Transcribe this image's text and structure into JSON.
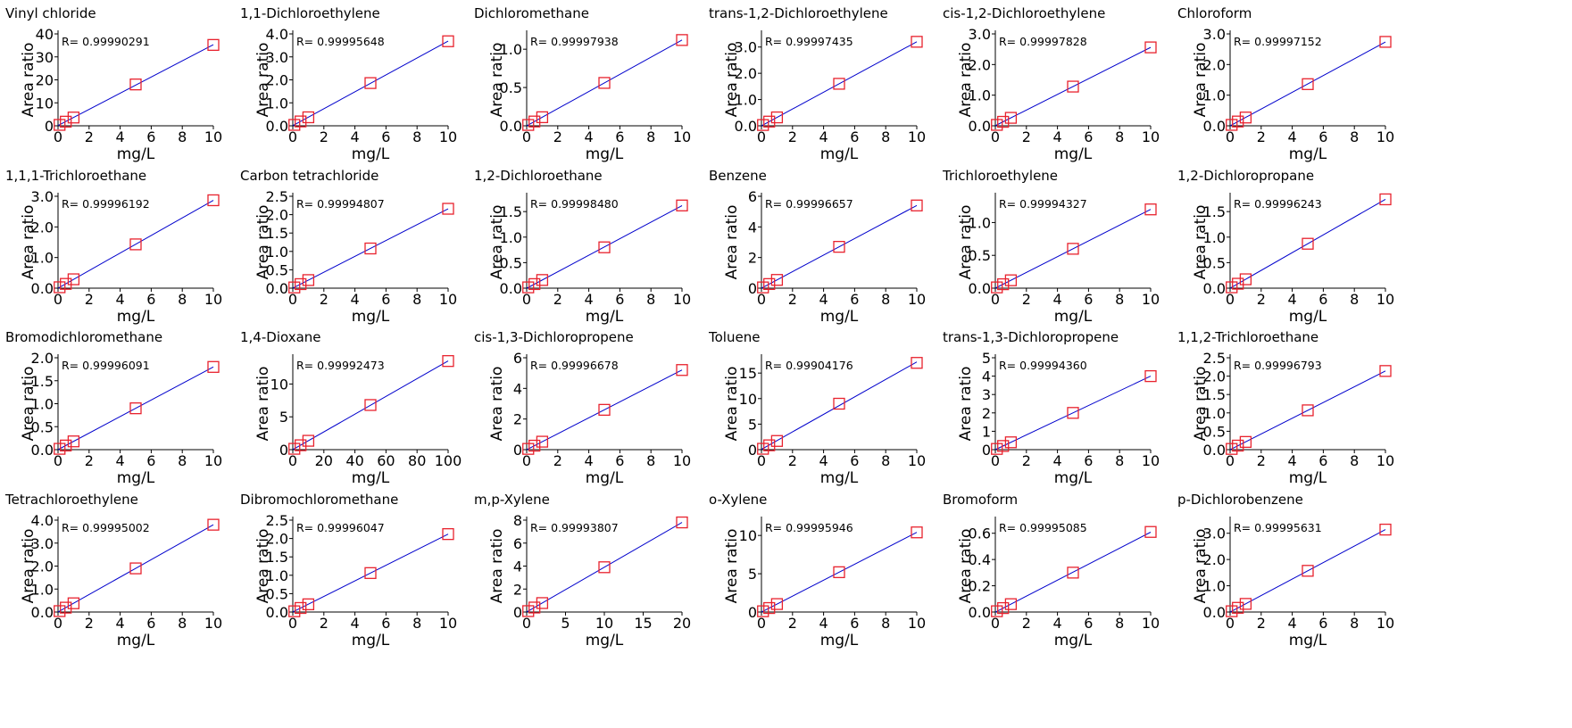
{
  "style": {
    "line_color": "#0000cc",
    "marker_color": "#e8222e",
    "axis_color": "#000000"
  },
  "chart_data": [
    {
      "type": "scatter",
      "title": "Vinyl chloride",
      "r_label": "R= 0.99990291",
      "xlabel": "mg/L",
      "ylabel": "Area ratio",
      "xlim": [
        0,
        10
      ],
      "ylim": [
        0,
        40
      ],
      "xticks": [
        "0",
        "2",
        "4",
        "6",
        "8",
        "10"
      ],
      "xtick_values": [
        0,
        2,
        4,
        6,
        8,
        10
      ],
      "yticks": [
        "0",
        "10",
        "20",
        "30",
        "40"
      ],
      "ytick_values": [
        0,
        10,
        20,
        30,
        40
      ],
      "x": [
        0.1,
        0.5,
        1,
        5,
        10
      ],
      "y": [
        0.4,
        1.8,
        3.6,
        18.0,
        35.2
      ]
    },
    {
      "type": "scatter",
      "title": "1,1-Dichloroethylene",
      "r_label": "R= 0.99995648",
      "xlabel": "mg/L",
      "ylabel": "Area ratio",
      "xlim": [
        0,
        10
      ],
      "ylim": [
        0,
        4
      ],
      "xticks": [
        "0",
        "2",
        "4",
        "6",
        "8",
        "10"
      ],
      "xtick_values": [
        0,
        2,
        4,
        6,
        8,
        10
      ],
      "yticks": [
        "0.0",
        "1.0",
        "2.0",
        "3.0",
        "4.0"
      ],
      "ytick_values": [
        0,
        1,
        2,
        3,
        4
      ],
      "x": [
        0.1,
        0.5,
        1,
        5,
        10
      ],
      "y": [
        0.04,
        0.19,
        0.37,
        1.86,
        3.68
      ]
    },
    {
      "type": "scatter",
      "title": "Dichloromethane",
      "r_label": "R= 0.99997938",
      "xlabel": "mg/L",
      "ylabel": "Area ratio",
      "xlim": [
        0,
        10
      ],
      "ylim": [
        0,
        1.2
      ],
      "xticks": [
        "0",
        "2",
        "4",
        "6",
        "8",
        "10"
      ],
      "xtick_values": [
        0,
        2,
        4,
        6,
        8,
        10
      ],
      "yticks": [
        "0.0",
        "0.5",
        "1.0"
      ],
      "ytick_values": [
        0,
        0.5,
        1.0
      ],
      "x": [
        0.1,
        0.5,
        1,
        5,
        10
      ],
      "y": [
        0.011,
        0.056,
        0.112,
        0.56,
        1.12
      ]
    },
    {
      "type": "scatter",
      "title": "trans-1,2-Dichloroethylene",
      "r_label": "R= 0.99997435",
      "xlabel": "mg/L",
      "ylabel": "Area ratio",
      "xlim": [
        0,
        10
      ],
      "ylim": [
        0,
        3.5
      ],
      "xticks": [
        "0",
        "2",
        "4",
        "6",
        "8",
        "10"
      ],
      "xtick_values": [
        0,
        2,
        4,
        6,
        8,
        10
      ],
      "yticks": [
        "0.0",
        "1.0",
        "2.0",
        "3.0"
      ],
      "ytick_values": [
        0,
        1,
        2,
        3
      ],
      "x": [
        0.1,
        0.5,
        1,
        5,
        10
      ],
      "y": [
        0.03,
        0.16,
        0.32,
        1.6,
        3.2
      ]
    },
    {
      "type": "scatter",
      "title": "cis-1,2-Dichloroethylene",
      "r_label": "R= 0.99997828",
      "xlabel": "mg/L",
      "ylabel": "Area ratio",
      "xlim": [
        0,
        10
      ],
      "ylim": [
        0,
        3
      ],
      "xticks": [
        "0",
        "2",
        "4",
        "6",
        "8",
        "10"
      ],
      "xtick_values": [
        0,
        2,
        4,
        6,
        8,
        10
      ],
      "yticks": [
        "0.0",
        "1.0",
        "2.0",
        "3.0"
      ],
      "ytick_values": [
        0,
        1,
        2,
        3
      ],
      "x": [
        0.1,
        0.5,
        1,
        5,
        10
      ],
      "y": [
        0.03,
        0.13,
        0.26,
        1.28,
        2.56
      ]
    },
    {
      "type": "scatter",
      "title": "Chloroform",
      "r_label": "R= 0.99997152",
      "xlabel": "mg/L",
      "ylabel": "Area ratio",
      "xlim": [
        0,
        10
      ],
      "ylim": [
        0,
        3
      ],
      "xticks": [
        "0",
        "2",
        "4",
        "6",
        "8",
        "10"
      ],
      "xtick_values": [
        0,
        2,
        4,
        6,
        8,
        10
      ],
      "yticks": [
        "0.0",
        "1.0",
        "2.0",
        "3.0"
      ],
      "ytick_values": [
        0,
        1,
        2,
        3
      ],
      "x": [
        0.1,
        0.5,
        1,
        5,
        10
      ],
      "y": [
        0.03,
        0.14,
        0.27,
        1.36,
        2.74
      ]
    },
    {
      "type": "scatter",
      "title": "1,1,1-Trichloroethane",
      "r_label": "R= 0.99996192",
      "xlabel": "mg/L",
      "ylabel": "Area ratio",
      "xlim": [
        0,
        10
      ],
      "ylim": [
        0,
        3
      ],
      "xticks": [
        "0",
        "2",
        "4",
        "6",
        "8",
        "10"
      ],
      "xtick_values": [
        0,
        2,
        4,
        6,
        8,
        10
      ],
      "yticks": [
        "0.0",
        "1.0",
        "2.0",
        "3.0"
      ],
      "ytick_values": [
        0,
        1,
        2,
        3
      ],
      "x": [
        0.1,
        0.5,
        1,
        5,
        10
      ],
      "y": [
        0.03,
        0.14,
        0.29,
        1.43,
        2.87
      ]
    },
    {
      "type": "scatter",
      "title": "Carbon tetrachloride",
      "r_label": "R= 0.99994807",
      "xlabel": "mg/L",
      "ylabel": "Area ratio",
      "xlim": [
        0,
        10
      ],
      "ylim": [
        0,
        2.5
      ],
      "xticks": [
        "0",
        "2",
        "4",
        "6",
        "8",
        "10"
      ],
      "xtick_values": [
        0,
        2,
        4,
        6,
        8,
        10
      ],
      "yticks": [
        "0.0",
        "0.5",
        "1.0",
        "1.5",
        "2.0",
        "2.5"
      ],
      "ytick_values": [
        0,
        0.5,
        1,
        1.5,
        2,
        2.5
      ],
      "x": [
        0.1,
        0.5,
        1,
        5,
        10
      ],
      "y": [
        0.02,
        0.11,
        0.22,
        1.08,
        2.16
      ]
    },
    {
      "type": "scatter",
      "title": "1,2-Dichloroethane",
      "r_label": "R= 0.99998480",
      "xlabel": "mg/L",
      "ylabel": "Area ratio",
      "xlim": [
        0,
        10
      ],
      "ylim": [
        0,
        1.8
      ],
      "xticks": [
        "0",
        "2",
        "4",
        "6",
        "8",
        "10"
      ],
      "xtick_values": [
        0,
        2,
        4,
        6,
        8,
        10
      ],
      "yticks": [
        "0.0",
        "0.5",
        "1.0",
        "1.5"
      ],
      "ytick_values": [
        0,
        0.5,
        1,
        1.5
      ],
      "x": [
        0.1,
        0.5,
        1,
        5,
        10
      ],
      "y": [
        0.016,
        0.08,
        0.16,
        0.8,
        1.62
      ]
    },
    {
      "type": "scatter",
      "title": "Benzene",
      "r_label": "R= 0.99996657",
      "xlabel": "mg/L",
      "ylabel": "Area ratio",
      "xlim": [
        0,
        10
      ],
      "ylim": [
        0,
        6
      ],
      "xticks": [
        "0",
        "2",
        "4",
        "6",
        "8",
        "10"
      ],
      "xtick_values": [
        0,
        2,
        4,
        6,
        8,
        10
      ],
      "yticks": [
        "0",
        "2",
        "4",
        "6"
      ],
      "ytick_values": [
        0,
        2,
        4,
        6
      ],
      "x": [
        0.1,
        0.5,
        1,
        5,
        10
      ],
      "y": [
        0.05,
        0.27,
        0.54,
        2.7,
        5.4
      ]
    },
    {
      "type": "scatter",
      "title": "Trichloroethylene",
      "r_label": "R= 0.99994327",
      "xlabel": "mg/L",
      "ylabel": "Area ratio",
      "xlim": [
        0,
        10
      ],
      "ylim": [
        0,
        1.4
      ],
      "xticks": [
        "0",
        "2",
        "4",
        "6",
        "8",
        "10"
      ],
      "xtick_values": [
        0,
        2,
        4,
        6,
        8,
        10
      ],
      "yticks": [
        "0.0",
        "0.5",
        "1.0"
      ],
      "ytick_values": [
        0,
        0.5,
        1
      ],
      "x": [
        0.1,
        0.5,
        1,
        5,
        10
      ],
      "y": [
        0.012,
        0.06,
        0.12,
        0.6,
        1.2
      ]
    },
    {
      "type": "scatter",
      "title": "1,2-Dichloropropane",
      "r_label": "R= 0.99996243",
      "xlabel": "mg/L",
      "ylabel": "Area ratio",
      "xlim": [
        0,
        10
      ],
      "ylim": [
        0,
        1.8
      ],
      "xticks": [
        "0",
        "2",
        "4",
        "6",
        "8",
        "10"
      ],
      "xtick_values": [
        0,
        2,
        4,
        6,
        8,
        10
      ],
      "yticks": [
        "0.0",
        "0.5",
        "1.0",
        "1.5"
      ],
      "ytick_values": [
        0,
        0.5,
        1,
        1.5
      ],
      "x": [
        0.1,
        0.5,
        1,
        5,
        10
      ],
      "y": [
        0.017,
        0.087,
        0.174,
        0.87,
        1.74
      ]
    },
    {
      "type": "scatter",
      "title": "Bromodichloromethane",
      "r_label": "R= 0.99996091",
      "xlabel": "mg/L",
      "ylabel": "Area ratio",
      "xlim": [
        0,
        10
      ],
      "ylim": [
        0,
        2
      ],
      "xticks": [
        "0",
        "2",
        "4",
        "6",
        "8",
        "10"
      ],
      "xtick_values": [
        0,
        2,
        4,
        6,
        8,
        10
      ],
      "yticks": [
        "0.0",
        "0.5",
        "1.0",
        "1.5",
        "2.0"
      ],
      "ytick_values": [
        0,
        0.5,
        1,
        1.5,
        2
      ],
      "x": [
        0.1,
        0.5,
        1,
        5,
        10
      ],
      "y": [
        0.018,
        0.09,
        0.18,
        0.9,
        1.8
      ]
    },
    {
      "type": "scatter",
      "title": "1,4-Dioxane",
      "r_label": "R= 0.99992473",
      "xlabel": "mg/L",
      "ylabel": "Area ratio",
      "xlim": [
        0,
        100
      ],
      "ylim": [
        0,
        14
      ],
      "xticks": [
        "0",
        "20",
        "40",
        "60",
        "80",
        "100"
      ],
      "xtick_values": [
        0,
        20,
        40,
        60,
        80,
        100
      ],
      "yticks": [
        "0",
        "5",
        "10"
      ],
      "ytick_values": [
        0,
        5,
        10
      ],
      "x": [
        1,
        5,
        10,
        50,
        100
      ],
      "y": [
        0.13,
        0.67,
        1.35,
        6.8,
        13.5
      ]
    },
    {
      "type": "scatter",
      "title": "cis-1,3-Dichloropropene",
      "r_label": "R= 0.99996678",
      "xlabel": "mg/L",
      "ylabel": "Area ratio",
      "xlim": [
        0,
        10
      ],
      "ylim": [
        0,
        6
      ],
      "xticks": [
        "0",
        "2",
        "4",
        "6",
        "8",
        "10"
      ],
      "xtick_values": [
        0,
        2,
        4,
        6,
        8,
        10
      ],
      "yticks": [
        "0",
        "2",
        "4",
        "6"
      ],
      "ytick_values": [
        0,
        2,
        4,
        6
      ],
      "x": [
        0.1,
        0.5,
        1,
        5,
        10
      ],
      "y": [
        0.05,
        0.26,
        0.52,
        2.6,
        5.2
      ]
    },
    {
      "type": "scatter",
      "title": "Toluene",
      "r_label": "R= 0.99904176",
      "xlabel": "mg/L",
      "ylabel": "Area ratio",
      "xlim": [
        0,
        10
      ],
      "ylim": [
        0,
        18
      ],
      "xticks": [
        "0",
        "2",
        "4",
        "6",
        "8",
        "10"
      ],
      "xtick_values": [
        0,
        2,
        4,
        6,
        8,
        10
      ],
      "yticks": [
        "0",
        "5",
        "10",
        "15"
      ],
      "ytick_values": [
        0,
        5,
        10,
        15
      ],
      "x": [
        0.1,
        0.5,
        1,
        5,
        10
      ],
      "y": [
        0.17,
        0.85,
        1.7,
        9.0,
        17.0
      ]
    },
    {
      "type": "scatter",
      "title": "trans-1,3-Dichloropropene",
      "r_label": "R= 0.99994360",
      "xlabel": "mg/L",
      "ylabel": "Area ratio",
      "xlim": [
        0,
        10
      ],
      "ylim": [
        0,
        5
      ],
      "xticks": [
        "0",
        "2",
        "4",
        "6",
        "8",
        "10"
      ],
      "xtick_values": [
        0,
        2,
        4,
        6,
        8,
        10
      ],
      "yticks": [
        "0",
        "1",
        "2",
        "3",
        "4",
        "5"
      ],
      "ytick_values": [
        0,
        1,
        2,
        3,
        4,
        5
      ],
      "x": [
        0.1,
        0.5,
        1,
        5,
        10
      ],
      "y": [
        0.04,
        0.2,
        0.4,
        2.0,
        4.0
      ]
    },
    {
      "type": "scatter",
      "title": "1,1,2-Trichloroethane",
      "r_label": "R= 0.99996793",
      "xlabel": "mg/L",
      "ylabel": "Area ratio",
      "xlim": [
        0,
        10
      ],
      "ylim": [
        0,
        2.5
      ],
      "xticks": [
        "0",
        "2",
        "4",
        "6",
        "8",
        "10"
      ],
      "xtick_values": [
        0,
        2,
        4,
        6,
        8,
        10
      ],
      "yticks": [
        "0.0",
        "0.5",
        "1.0",
        "1.5",
        "2.0",
        "2.5"
      ],
      "ytick_values": [
        0,
        0.5,
        1,
        1.5,
        2,
        2.5
      ],
      "x": [
        0.1,
        0.5,
        1,
        5,
        10
      ],
      "y": [
        0.02,
        0.11,
        0.21,
        1.07,
        2.14
      ]
    },
    {
      "type": "scatter",
      "title": "Tetrachloroethylene",
      "r_label": "R= 0.99995002",
      "xlabel": "mg/L",
      "ylabel": "Area ratio",
      "xlim": [
        0,
        10
      ],
      "ylim": [
        0,
        4
      ],
      "xticks": [
        "0",
        "2",
        "4",
        "6",
        "8",
        "10"
      ],
      "xtick_values": [
        0,
        2,
        4,
        6,
        8,
        10
      ],
      "yticks": [
        "0.0",
        "1.0",
        "2.0",
        "3.0",
        "4.0"
      ],
      "ytick_values": [
        0,
        1,
        2,
        3,
        4
      ],
      "x": [
        0.1,
        0.5,
        1,
        5,
        10
      ],
      "y": [
        0.04,
        0.19,
        0.38,
        1.9,
        3.8
      ]
    },
    {
      "type": "scatter",
      "title": "Dibromochloromethane",
      "r_label": "R= 0.99996047",
      "xlabel": "mg/L",
      "ylabel": "Area ratio",
      "xlim": [
        0,
        10
      ],
      "ylim": [
        0,
        2.5
      ],
      "xticks": [
        "0",
        "2",
        "4",
        "6",
        "8",
        "10"
      ],
      "xtick_values": [
        0,
        2,
        4,
        6,
        8,
        10
      ],
      "yticks": [
        "0.0",
        "0.5",
        "1.0",
        "1.5",
        "2.0",
        "2.5"
      ],
      "ytick_values": [
        0,
        0.5,
        1,
        1.5,
        2,
        2.5
      ],
      "x": [
        0.1,
        0.5,
        1,
        5,
        10
      ],
      "y": [
        0.02,
        0.11,
        0.21,
        1.06,
        2.12
      ]
    },
    {
      "type": "scatter",
      "title": "m,p-Xylene",
      "r_label": "R= 0.99993807",
      "xlabel": "mg/L",
      "ylabel": "Area ratio",
      "xlim": [
        0,
        20
      ],
      "ylim": [
        0,
        8
      ],
      "xticks": [
        "0",
        "5",
        "10",
        "15",
        "20"
      ],
      "xtick_values": [
        0,
        5,
        10,
        15,
        20
      ],
      "yticks": [
        "0",
        "2",
        "4",
        "6",
        "8"
      ],
      "ytick_values": [
        0,
        2,
        4,
        6,
        8
      ],
      "x": [
        0.2,
        1,
        2,
        10,
        20
      ],
      "y": [
        0.08,
        0.39,
        0.78,
        3.9,
        7.8
      ]
    },
    {
      "type": "scatter",
      "title": "o-Xylene",
      "r_label": "R= 0.99995946",
      "xlabel": "mg/L",
      "ylabel": "Area ratio",
      "xlim": [
        0,
        10
      ],
      "ylim": [
        0,
        12
      ],
      "xticks": [
        "0",
        "2",
        "4",
        "6",
        "8",
        "10"
      ],
      "xtick_values": [
        0,
        2,
        4,
        6,
        8,
        10
      ],
      "yticks": [
        "0",
        "5",
        "10"
      ],
      "ytick_values": [
        0,
        5,
        10
      ],
      "x": [
        0.1,
        0.5,
        1,
        5,
        10
      ],
      "y": [
        0.1,
        0.52,
        1.04,
        5.2,
        10.4
      ]
    },
    {
      "type": "scatter",
      "title": "Bromoform",
      "r_label": "R= 0.99995085",
      "xlabel": "mg/L",
      "ylabel": "Area ratio",
      "xlim": [
        0,
        10
      ],
      "ylim": [
        0,
        0.7
      ],
      "xticks": [
        "0",
        "2",
        "4",
        "6",
        "8",
        "10"
      ],
      "xtick_values": [
        0,
        2,
        4,
        6,
        8,
        10
      ],
      "yticks": [
        "0.0",
        "0.2",
        "0.4",
        "0.6"
      ],
      "ytick_values": [
        0,
        0.2,
        0.4,
        0.6
      ],
      "x": [
        0.1,
        0.5,
        1,
        5,
        10
      ],
      "y": [
        0.006,
        0.03,
        0.06,
        0.3,
        0.61
      ]
    },
    {
      "type": "scatter",
      "title": "p-Dichlorobenzene",
      "r_label": "R= 0.99995631",
      "xlabel": "mg/L",
      "ylabel": "Area ratio",
      "xlim": [
        0,
        10
      ],
      "ylim": [
        0,
        3.5
      ],
      "xticks": [
        "0",
        "2",
        "4",
        "6",
        "8",
        "10"
      ],
      "xtick_values": [
        0,
        2,
        4,
        6,
        8,
        10
      ],
      "yticks": [
        "0.0",
        "1.0",
        "2.0",
        "3.0"
      ],
      "ytick_values": [
        0,
        1,
        2,
        3
      ],
      "x": [
        0.1,
        0.5,
        1,
        5,
        10
      ],
      "y": [
        0.03,
        0.16,
        0.31,
        1.57,
        3.14
      ]
    }
  ]
}
